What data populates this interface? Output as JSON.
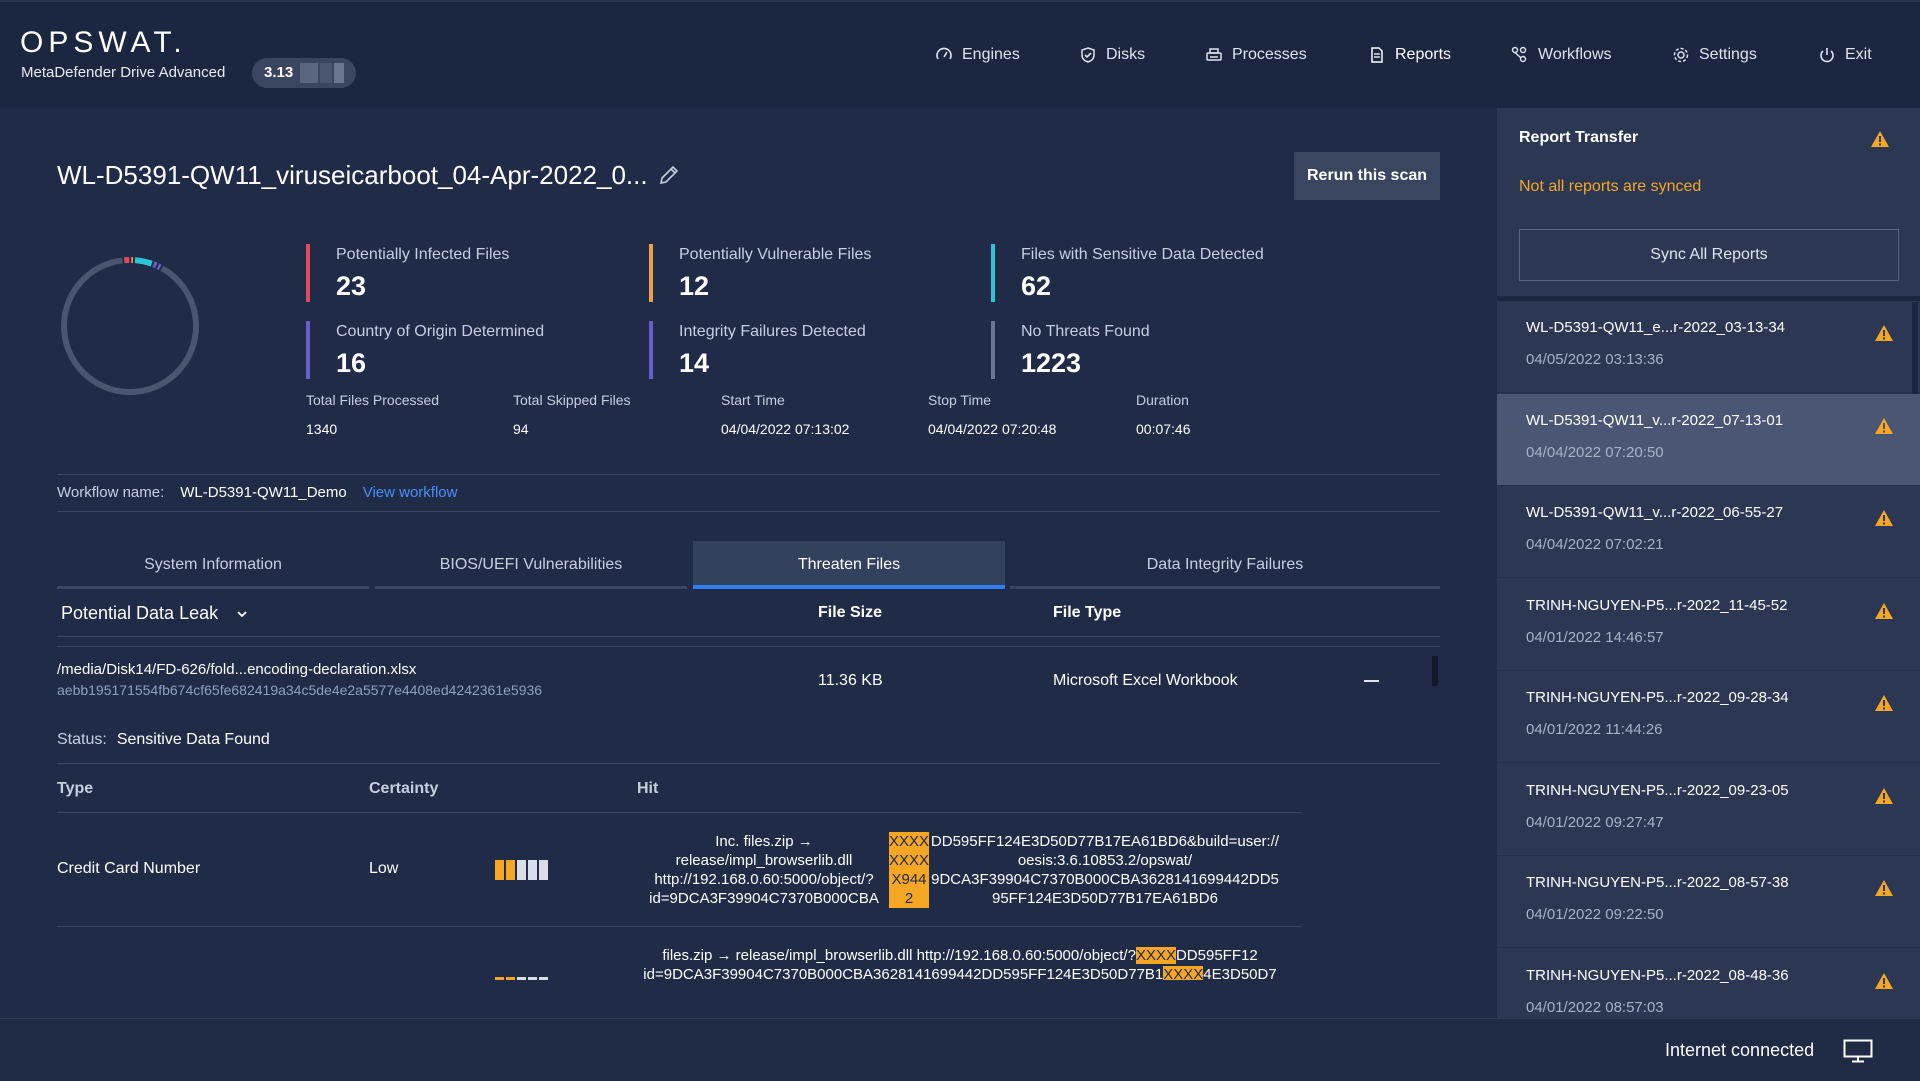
{
  "header": {
    "logo": "OPSWAT.",
    "product": "MetaDefender Drive Advanced",
    "version": "3.13",
    "nav": [
      {
        "label": "Engines",
        "icon": "gauge-icon"
      },
      {
        "label": "Disks",
        "icon": "check-badge-icon"
      },
      {
        "label": "Processes",
        "icon": "printer-icon"
      },
      {
        "label": "Reports",
        "icon": "document-icon"
      },
      {
        "label": "Workflows",
        "icon": "workflow-icon"
      },
      {
        "label": "Settings",
        "icon": "gear-icon"
      },
      {
        "label": "Exit",
        "icon": "power-icon"
      }
    ]
  },
  "report": {
    "title": "WL-D5391-QW11_viruseicarboot_04-Apr-2022_0...",
    "rerun_label": "Rerun this scan",
    "stats": [
      {
        "label": "Potentially Infected Files",
        "value": "23",
        "color": "#e04a5f"
      },
      {
        "label": "Potentially Vulnerable Files",
        "value": "12",
        "color": "#f0a04b"
      },
      {
        "label": "Files with Sensitive Data Detected",
        "value": "62",
        "color": "#2ec4d6"
      },
      {
        "label": "Country of Origin Determined",
        "value": "16",
        "color": "#6a5fc8"
      },
      {
        "label": "Integrity Failures Detected",
        "value": "14",
        "color": "#6a5fc8"
      },
      {
        "label": "No Threats Found",
        "value": "1223",
        "color": "#6b7690"
      }
    ],
    "meta": [
      {
        "label": "Total Files Processed",
        "value": "1340"
      },
      {
        "label": "Total Skipped Files",
        "value": "94"
      },
      {
        "label": "Start Time",
        "value": "04/04/2022 07:13:02"
      },
      {
        "label": "Stop Time",
        "value": "04/04/2022 07:20:48"
      },
      {
        "label": "Duration",
        "value": "00:07:46"
      }
    ],
    "workflow": {
      "label": "Workflow name:",
      "name": "WL-D5391-QW11_Demo",
      "link": "View workflow"
    },
    "tabs": [
      "System Information",
      "BIOS/UEFI Vulnerabilities",
      "Threaten Files",
      "Data Integrity Failures"
    ],
    "active_tab": "Threaten Files",
    "filter": {
      "selected": "Potential Data Leak"
    },
    "columns": {
      "size": "File Size",
      "type": "File Type"
    },
    "file": {
      "path": "/media/Disk14/FD-626/fold...encoding-declaration.xlsx",
      "hash": "aebb195171554fb674cf65fe682419a34c5de4e2a5577e4408ed4242361e5936",
      "size": "11.36 KB",
      "type": "Microsoft Excel Workbook",
      "status_label": "Status:",
      "status": "Sensitive Data Found"
    },
    "detail_headers": {
      "type": "Type",
      "certainty": "Certainty",
      "hit": "Hit"
    },
    "detail_rows": [
      {
        "type": "Credit Card Number",
        "certainty": "Low",
        "certainty_level": 2,
        "hit_left": [
          "Inc. files.zip →",
          "release/impl_browserlib.dll",
          "http://192.168.0.60:5000/object/?",
          "id=9DCA3F39904C7370B000CBA"
        ],
        "hit_match": [
          "XXXX",
          "XXXX",
          "X944",
          "2"
        ],
        "hit_right": [
          "DD595FF124E3D50D77B17EA61BD6&build=user://",
          "oesis:3.6.10853.2/opswat/",
          "9DCA3F39904C7370B000CBA3628141699442DD5",
          "95FF124E3D50D77B17EA61BD6"
        ]
      },
      {
        "type": "",
        "certainty": "",
        "certainty_level": 2,
        "hit_line1_a": "files.zip → release/impl_browserlib.dll http://192.168.0.60:5000/object/?",
        "hit_line1_m": "XXXX",
        "hit_line1_b": "DD595FF12",
        "hit_line2_a": "id=9DCA3F39904C7370B000CBA3628141699442DD595FF124E3D50D77B1",
        "hit_line2_m": "XXXX",
        "hit_line2_b": "4E3D50D7"
      }
    ],
    "donut": [
      {
        "value": 23,
        "color": "#e04a5f"
      },
      {
        "value": 12,
        "color": "#f0a04b"
      },
      {
        "value": 62,
        "color": "#2ec4d6"
      },
      {
        "value": 16,
        "color": "#6a5fc8"
      },
      {
        "value": 14,
        "color": "#6a5fc8"
      },
      {
        "value": 1223,
        "color": "#4a556f"
      }
    ]
  },
  "sidebar": {
    "title": "Report Transfer",
    "warning": "Not all reports are synced",
    "sync_label": "Sync All Reports",
    "reports": [
      {
        "name": "WL-D5391-QW11_e...r-2022_03-13-34",
        "date": "04/05/2022 03:13:36",
        "selected": false
      },
      {
        "name": "WL-D5391-QW11_v...r-2022_07-13-01",
        "date": "04/04/2022 07:20:50",
        "selected": true
      },
      {
        "name": "WL-D5391-QW11_v...r-2022_06-55-27",
        "date": "04/04/2022 07:02:21",
        "selected": false
      },
      {
        "name": "TRINH-NGUYEN-P5...r-2022_11-45-52",
        "date": "04/01/2022 14:46:57",
        "selected": false
      },
      {
        "name": "TRINH-NGUYEN-P5...r-2022_09-28-34",
        "date": "04/01/2022 11:44:26",
        "selected": false
      },
      {
        "name": "TRINH-NGUYEN-P5...r-2022_09-23-05",
        "date": "04/01/2022 09:27:47",
        "selected": false
      },
      {
        "name": "TRINH-NGUYEN-P5...r-2022_08-57-38",
        "date": "04/01/2022 09:22:50",
        "selected": false
      },
      {
        "name": "TRINH-NGUYEN-P5...r-2022_08-48-36",
        "date": "04/01/2022 08:57:03",
        "selected": false
      }
    ]
  },
  "footer": {
    "connection": "Internet connected"
  },
  "colors": {
    "accent": "#2f7ef0",
    "warning": "#f5a623",
    "link": "#4b8cf7"
  }
}
